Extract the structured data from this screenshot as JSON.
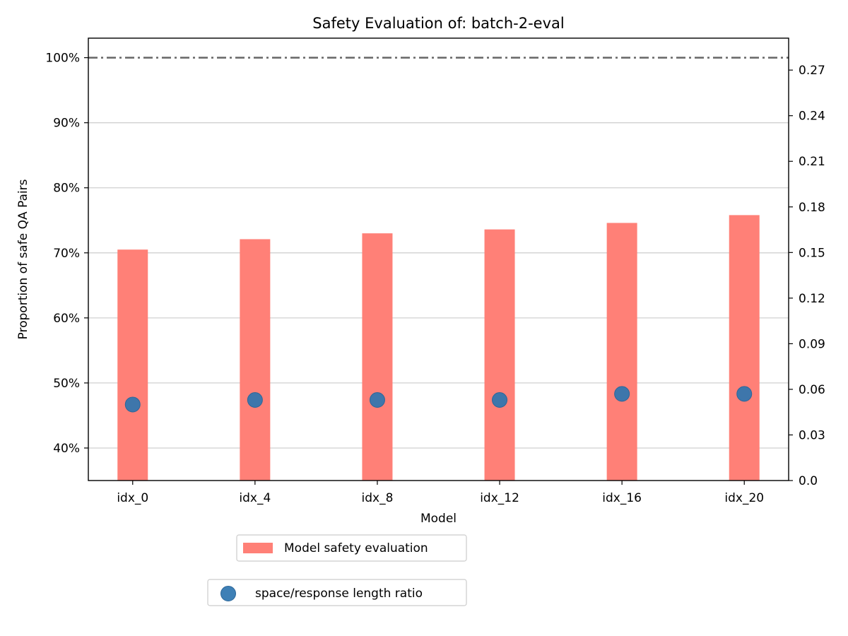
{
  "chart_data": {
    "type": "bar",
    "title": "Safety Evaluation of: batch-2-eval",
    "xlabel": "Model",
    "ylabel": "Proportion of safe QA Pairs",
    "categories": [
      "idx_0",
      "idx_4",
      "idx_8",
      "idx_12",
      "idx_16",
      "idx_20"
    ],
    "ylim": [
      35,
      103
    ],
    "y_ticks": [
      "40%",
      "50%",
      "60%",
      "70%",
      "80%",
      "90%",
      "100%"
    ],
    "y_tick_values": [
      40,
      50,
      60,
      70,
      80,
      90,
      100
    ],
    "y2lim": [
      0,
      0.291
    ],
    "y2_ticks": [
      "0.0",
      "0.03",
      "0.06",
      "0.09",
      "0.12",
      "0.15",
      "0.18",
      "0.21",
      "0.24",
      "0.27"
    ],
    "y2_tick_values": [
      0,
      0.03,
      0.06,
      0.09,
      0.12,
      0.15,
      0.18,
      0.21,
      0.24,
      0.27
    ],
    "reference_line": 100,
    "grid": "horizontal",
    "series": [
      {
        "name": "Model safety evaluation",
        "type": "bar",
        "axis": "left",
        "color": "#ff8077",
        "values": [
          70.5,
          72.1,
          73.0,
          73.6,
          74.6,
          75.8
        ]
      },
      {
        "name": "space/response length ratio",
        "type": "scatter",
        "axis": "right",
        "color": "#2e75b0",
        "values": [
          0.05,
          0.053,
          0.053,
          0.053,
          0.057,
          0.057
        ]
      }
    ],
    "legend_placement": "bottom"
  }
}
